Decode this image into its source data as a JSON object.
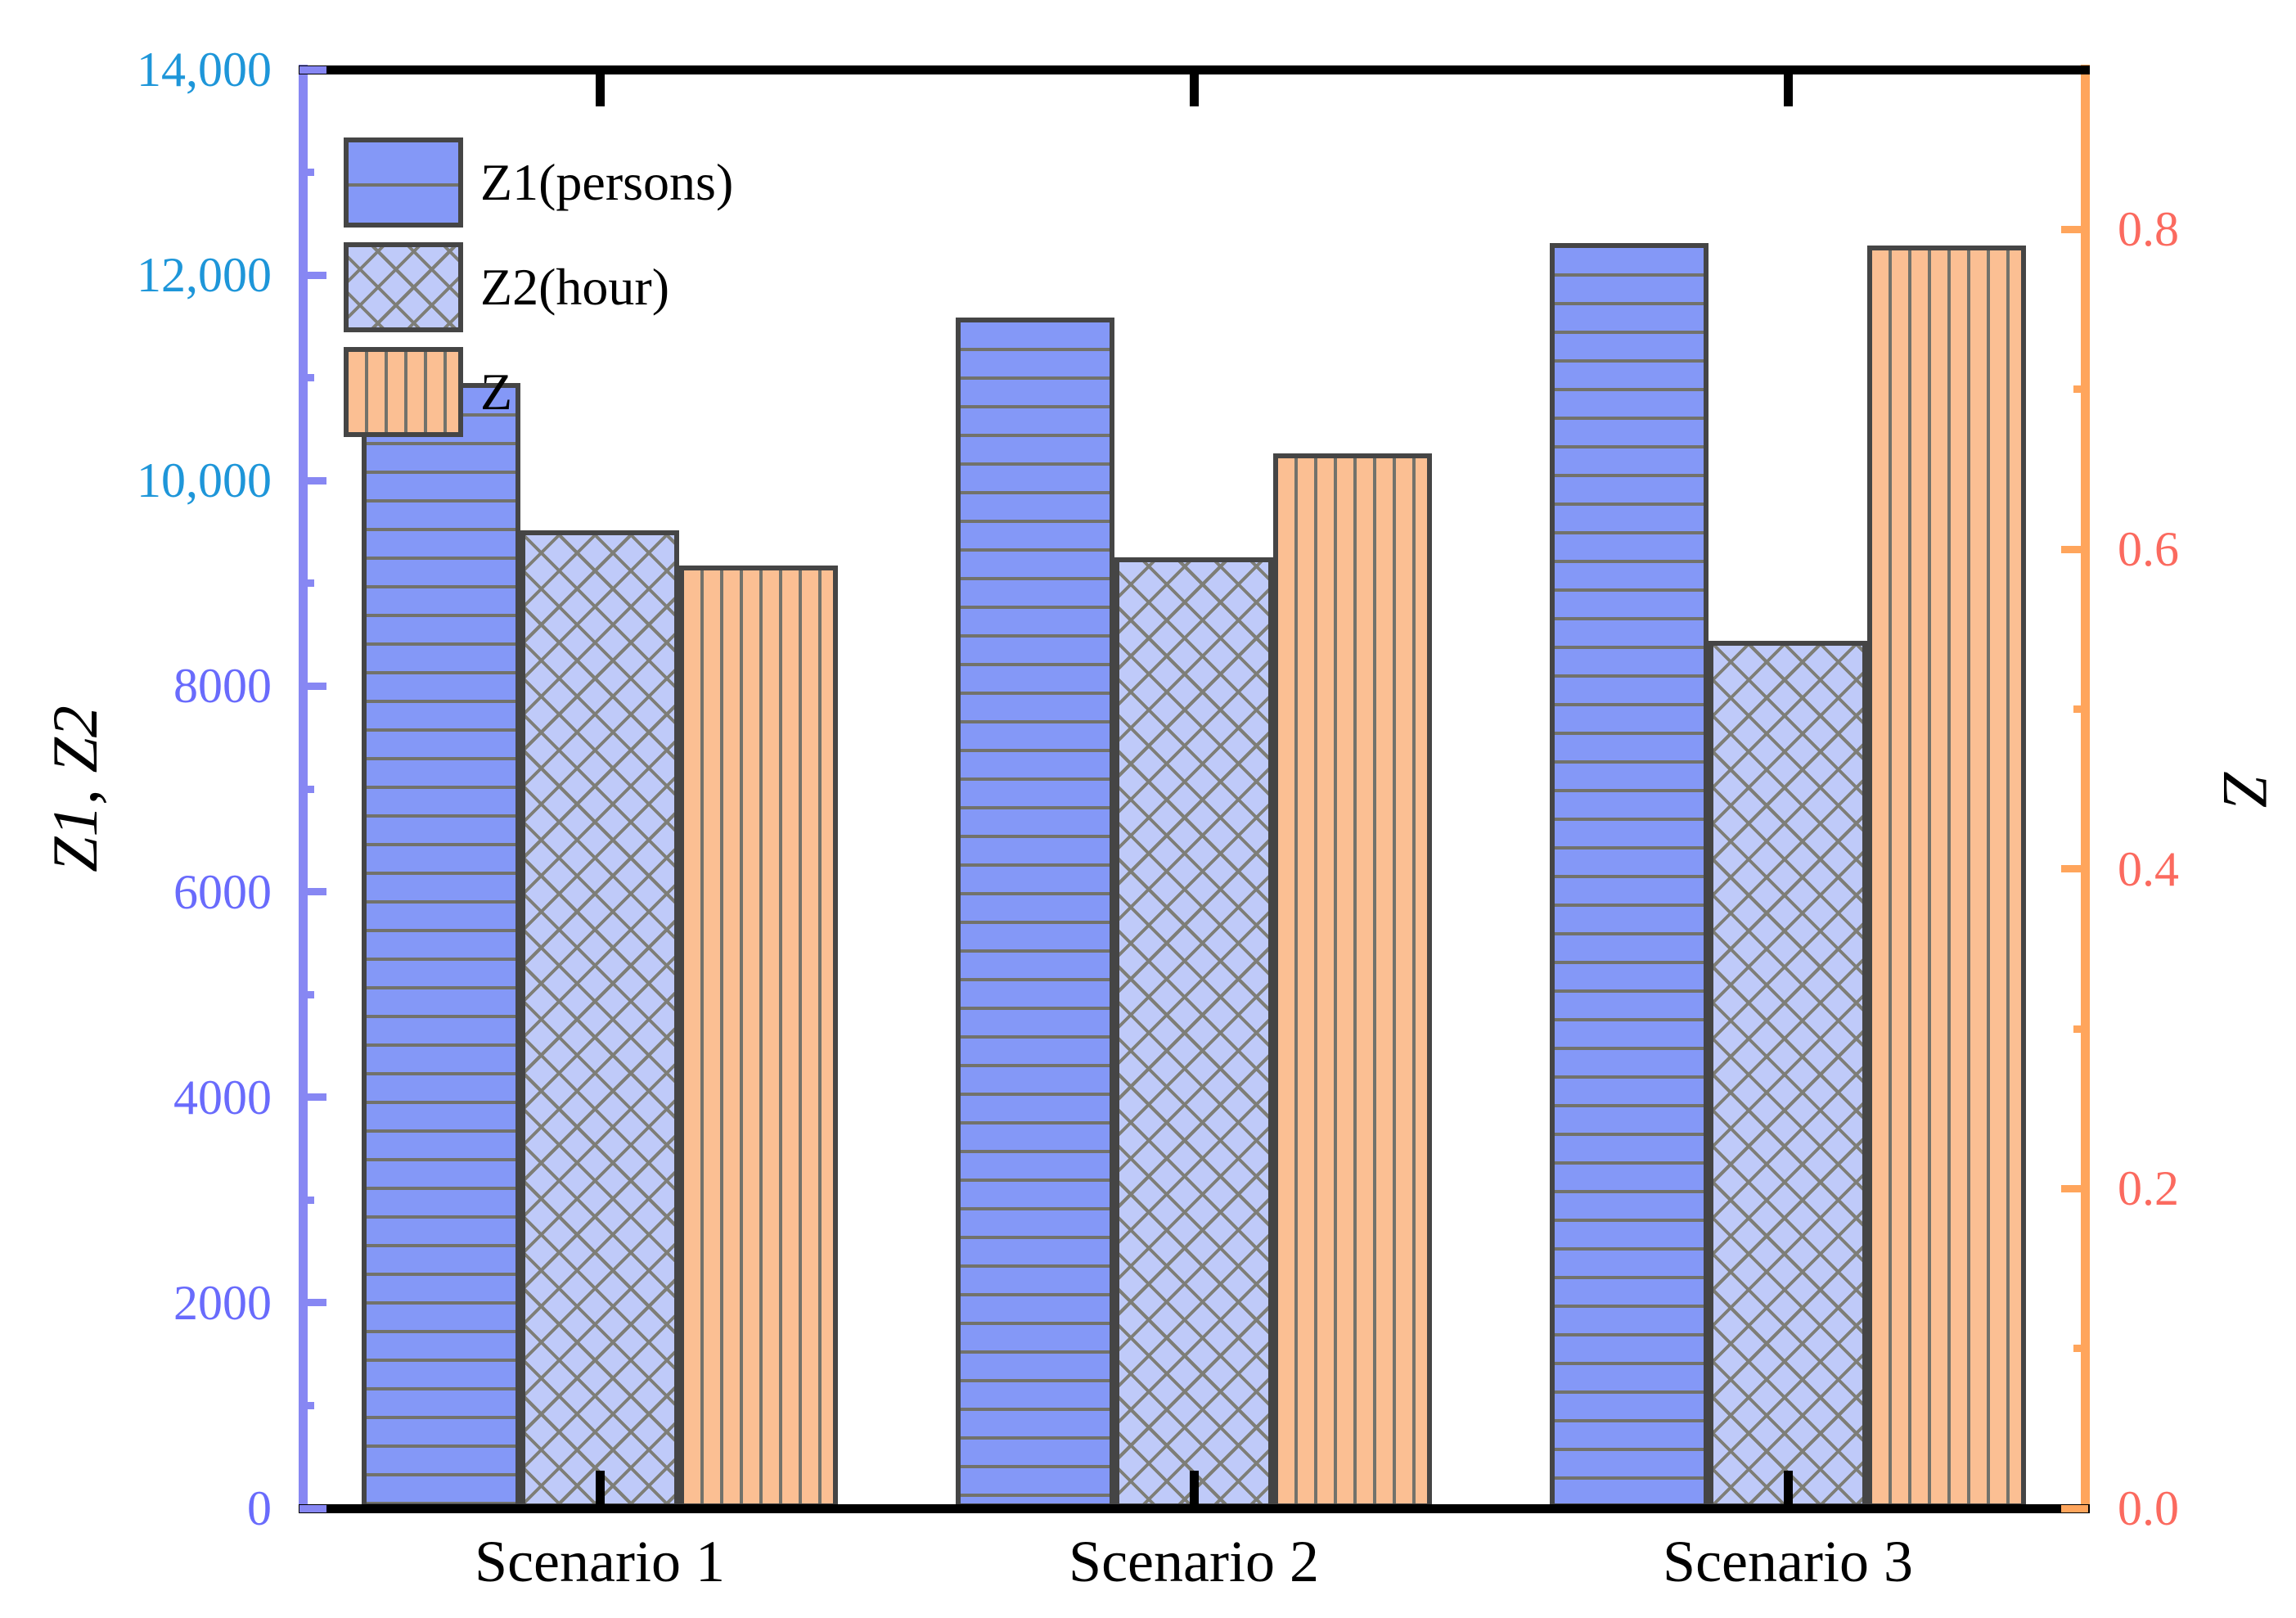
{
  "colors": {
    "background": "#ffffff",
    "bar_border": "#454545",
    "hatch_line": "#72726B",
    "left_spine": "#8787F3",
    "right_spine": "#FFA55C",
    "left_label_upper": "#1E96D9",
    "left_label_lower": "#696BFC",
    "right_label": "#FB6A5F",
    "x_axis": "#000000"
  },
  "chart_data": {
    "type": "bar",
    "grid": false,
    "categories": [
      "Scenario 1",
      "Scenario 2",
      "Scenario 3"
    ],
    "series": [
      {
        "name": "Z1(persons)",
        "axis": "left",
        "values": [
          10950,
          11590,
          12310
        ],
        "fill": "#8498F7",
        "hatch": "horizontal"
      },
      {
        "name": "Z2(hour)",
        "axis": "left",
        "values": [
          9520,
          9250,
          8440
        ],
        "fill": "#BFCAF9",
        "hatch": "cross"
      },
      {
        "name": "Z",
        "axis": "right",
        "values": [
          0.59,
          0.66,
          0.79
        ],
        "fill": "#FBBF93",
        "hatch": "vertical"
      }
    ],
    "left_axis": {
      "title": "Z1, Z2",
      "range": [
        0,
        14000
      ],
      "major_ticks": [
        {
          "value": 0,
          "label": "0",
          "color": "#696BFC"
        },
        {
          "value": 2000,
          "label": "2000",
          "color": "#696BFC"
        },
        {
          "value": 4000,
          "label": "4000",
          "color": "#696BFC"
        },
        {
          "value": 6000,
          "label": "6000",
          "color": "#696BFC"
        },
        {
          "value": 8000,
          "label": "8000",
          "color": "#696BFC"
        },
        {
          "value": 10000,
          "label": "10,000",
          "color": "#1E96D9"
        },
        {
          "value": 12000,
          "label": "12,000",
          "color": "#1E96D9"
        },
        {
          "value": 14000,
          "label": "14,000",
          "color": "#1E96D9"
        }
      ],
      "minor_ticks": [
        1000,
        3000,
        5000,
        7000,
        9000,
        11000,
        13000
      ]
    },
    "right_axis": {
      "title": "Z",
      "range": [
        0,
        0.9
      ],
      "major_ticks": [
        {
          "value": 0.0,
          "label": "0.0"
        },
        {
          "value": 0.2,
          "label": "0.2"
        },
        {
          "value": 0.4,
          "label": "0.4"
        },
        {
          "value": 0.6,
          "label": "0.6"
        },
        {
          "value": 0.8,
          "label": "0.8"
        }
      ],
      "minor_ticks": [
        0.1,
        0.3,
        0.5,
        0.7
      ]
    },
    "legend": {
      "position": "top-left",
      "items": [
        "Z1(persons)",
        "Z2(hour)",
        "Z"
      ]
    }
  }
}
